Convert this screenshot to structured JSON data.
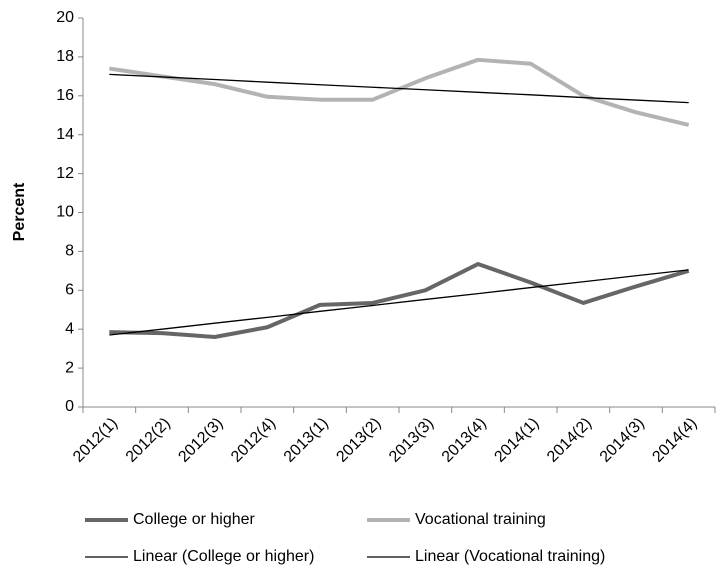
{
  "chart_data": {
    "type": "line",
    "y_label": "Percent",
    "categories": [
      "2012(1)",
      "2012(2)",
      "2012(3)",
      "2012(4)",
      "2013(1)",
      "2013(2)",
      "2013(3)",
      "2013(4)",
      "2014(1)",
      "2014(2)",
      "2014(3)",
      "2014(4)"
    ],
    "series": [
      {
        "name": "College or higher",
        "color": "#666666",
        "width": 4,
        "values": [
          3.85,
          3.8,
          3.6,
          4.1,
          5.25,
          5.35,
          6.0,
          7.35,
          6.4,
          5.35,
          6.2,
          7.0
        ]
      },
      {
        "name": "Vocational training",
        "color": "#b3b3b3",
        "width": 4,
        "values": [
          17.4,
          17.0,
          16.6,
          15.95,
          15.8,
          15.8,
          16.9,
          17.85,
          17.65,
          16.0,
          15.15,
          14.5
        ]
      },
      {
        "name": "Linear (College or higher)",
        "color": "#000000",
        "width": 1.3,
        "values": [
          3.7,
          4.0,
          4.31,
          4.61,
          4.92,
          5.22,
          5.53,
          5.83,
          6.14,
          6.44,
          6.75,
          7.05
        ]
      },
      {
        "name": "Linear (Vocational training)",
        "color": "#000000",
        "width": 1.3,
        "values": [
          17.1,
          16.97,
          16.84,
          16.7,
          16.57,
          16.44,
          16.31,
          16.18,
          16.05,
          15.91,
          15.78,
          15.65
        ]
      }
    ],
    "ylim": [
      0,
      20
    ],
    "yticks": [
      0,
      2,
      4,
      6,
      8,
      10,
      12,
      14,
      16,
      18,
      20
    ]
  }
}
